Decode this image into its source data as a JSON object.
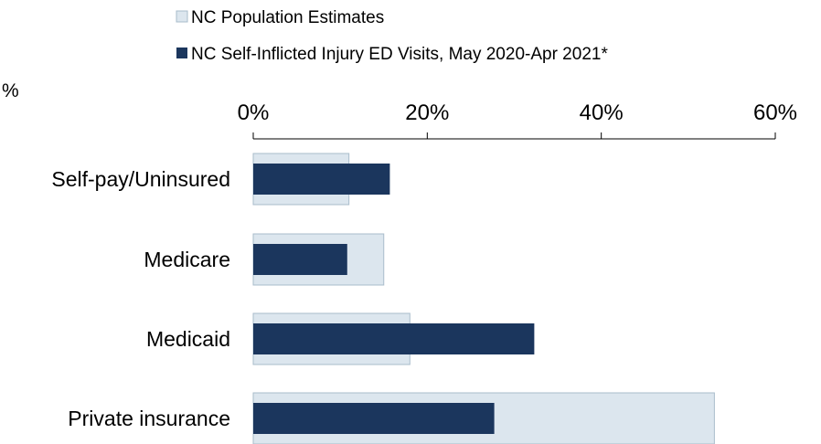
{
  "chart_data": {
    "type": "bar",
    "orientation": "horizontal",
    "unit_label": "%",
    "categories": [
      "Self-pay/Uninsured",
      "Medicare",
      "Medicaid",
      "Private insurance"
    ],
    "series": [
      {
        "name": "NC Population Estimates",
        "values": [
          11,
          15,
          18,
          53
        ],
        "color": "#dce6ee",
        "border": "#a9bccb"
      },
      {
        "name": "NC Self-Inflicted Injury ED Visits, May 2020-Apr 2021*",
        "values": [
          15.7,
          10.8,
          32.3,
          27.7
        ],
        "color": "#1b365d"
      }
    ],
    "xlim": [
      0,
      60
    ],
    "ticks": [
      0,
      20,
      40,
      60
    ],
    "tick_labels": [
      "0%",
      "20%",
      "40%",
      "60%"
    ],
    "axis_position": "top",
    "grid": false,
    "legend_position": "top"
  }
}
